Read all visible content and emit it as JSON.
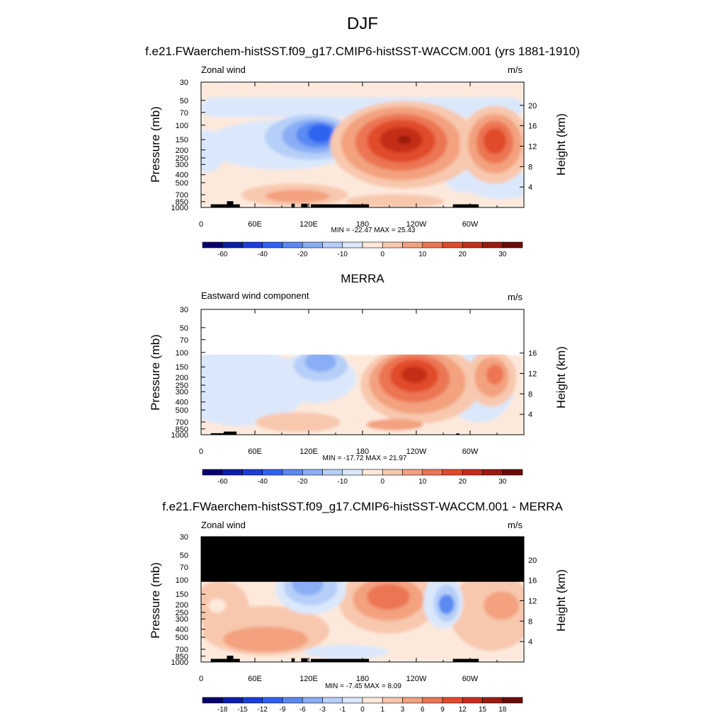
{
  "figure": {
    "title": "DJF"
  },
  "pressure_ticks": [
    "30",
    "50",
    "70",
    "100",
    "150",
    "200",
    "250",
    "300",
    "400",
    "500",
    "700",
    "850",
    "1000"
  ],
  "longitude_ticks": [
    "0",
    "60E",
    "120E",
    "180",
    "120W",
    "60W"
  ],
  "panels": [
    {
      "title": "f.e21.FWaerchem-histSST.f09_g17.CMIP6-histSST-WACCM.001 (yrs 1881-1910)",
      "left_label": "Zonal wind",
      "right_label": "m/s",
      "ylabel": "Pressure (mb)",
      "ylabel_right": "Height (km)",
      "height_ticks": [
        "4",
        "8",
        "12",
        "16",
        "20"
      ],
      "min_max": "MIN = -22.47  MAX =  25.43",
      "colorbar_labels": [
        "-60",
        "-40",
        "-20",
        "-10",
        "0",
        "10",
        "20",
        "30"
      ]
    },
    {
      "title": "MERRA",
      "left_label": "Eastward wind component",
      "right_label": "m/s",
      "ylabel": "Pressure (mb)",
      "ylabel_right": "Height (km)",
      "height_ticks": [
        "4",
        "8",
        "12",
        "16"
      ],
      "min_max": "MIN = -17.72  MAX =  21.97",
      "colorbar_labels": [
        "-60",
        "-40",
        "-20",
        "-10",
        "0",
        "10",
        "20",
        "30"
      ]
    },
    {
      "title": "f.e21.FWaerchem-histSST.f09_g17.CMIP6-histSST-WACCM.001 - MERRA",
      "left_label": "Zonal wind",
      "right_label": "m/s",
      "ylabel": "Pressure (mb)",
      "ylabel_right": "Height (km)",
      "height_ticks": [
        "4",
        "8",
        "12",
        "16",
        "20"
      ],
      "min_max": "MIN =  -7.45  MAX =   8.09",
      "colorbar_labels": [
        "-18",
        "-15",
        "-12",
        "-9",
        "-6",
        "-3",
        "-1",
        "0",
        "1",
        "3",
        "6",
        "9",
        "12",
        "15",
        "18"
      ]
    }
  ],
  "colors": {
    "palette": [
      "#08006e",
      "#0b1fa8",
      "#1a3fd6",
      "#2f63f0",
      "#5a8af2",
      "#8aaef5",
      "#b6cff8",
      "#dbe8fb",
      "#fde9dc",
      "#f8c8ae",
      "#f3a17e",
      "#ec7552",
      "#e04b2c",
      "#c52d19",
      "#9c1a10",
      "#6b0b07"
    ],
    "mask": "#000000"
  },
  "chart_data": [
    {
      "type": "heatmap",
      "title": "f.e21.FWaerchem-histSST.f09_g17.CMIP6-histSST-WACCM.001 (yrs 1881-1910)",
      "variable": "Zonal wind",
      "units": "m/s",
      "ylabel": "Pressure (mb)",
      "y2label": "Height (km)",
      "y_scale": "log",
      "ylim": [
        1000,
        30
      ],
      "xlim": [
        0,
        360
      ],
      "x_ticks": [
        "0",
        "60E",
        "120E",
        "180",
        "120W",
        "60W"
      ],
      "min": -22.47,
      "max": 25.43,
      "contour_levels": [
        -60,
        -50,
        -40,
        -30,
        -20,
        -15,
        -10,
        -5,
        0,
        5,
        10,
        15,
        20,
        25,
        30
      ],
      "features": [
        {
          "pressure": 130,
          "lon": 130,
          "value": -20
        },
        {
          "pressure": 160,
          "lon": 225,
          "value": 25
        },
        {
          "pressure": 160,
          "lon": 325,
          "value": 20
        },
        {
          "pressure": 60,
          "lon": 180,
          "value": -5
        },
        {
          "pressure": 750,
          "lon": 110,
          "value": 10
        }
      ]
    },
    {
      "type": "heatmap",
      "title": "MERRA",
      "variable": "Eastward wind component",
      "units": "m/s",
      "ylabel": "Pressure (mb)",
      "y2label": "Height (km)",
      "y_scale": "log",
      "ylim": [
        1000,
        30
      ],
      "xlim": [
        0,
        360
      ],
      "x_ticks": [
        "0",
        "60E",
        "120E",
        "180",
        "120W",
        "60W"
      ],
      "min": -17.72,
      "max": 21.97,
      "contour_levels": [
        -60,
        -50,
        -40,
        -30,
        -20,
        -15,
        -10,
        -5,
        0,
        5,
        10,
        15,
        20,
        25,
        30
      ],
      "features": [
        {
          "pressure": 160,
          "lon": 137,
          "value": -15
        },
        {
          "pressure": 170,
          "lon": 245,
          "value": 20
        },
        {
          "pressure": 170,
          "lon": 330,
          "value": 15
        },
        {
          "pressure": 700,
          "lon": 90,
          "value": 5
        }
      ]
    },
    {
      "type": "heatmap",
      "title": "f.e21.FWaerchem-histSST.f09_g17.CMIP6-histSST-WACCM.001 - MERRA",
      "variable": "Zonal wind",
      "units": "m/s",
      "ylabel": "Pressure (mb)",
      "y2label": "Height (km)",
      "y_scale": "log",
      "ylim": [
        1000,
        30
      ],
      "xlim": [
        0,
        360
      ],
      "x_ticks": [
        "0",
        "60E",
        "120E",
        "180",
        "120W",
        "60W"
      ],
      "min": -7.45,
      "max": 8.09,
      "contour_levels": [
        -18,
        -15,
        -12,
        -9,
        -6,
        -3,
        -1,
        0,
        1,
        3,
        6,
        9,
        12,
        15,
        18
      ],
      "features": [
        {
          "pressure": 170,
          "lon": 200,
          "value": 6
        },
        {
          "pressure": 220,
          "lon": 275,
          "value": -6
        },
        {
          "pressure": 160,
          "lon": 120,
          "value": -6
        },
        {
          "pressure": 600,
          "lon": 120,
          "value": 3
        },
        {
          "pressure": 200,
          "lon": 330,
          "value": 3
        }
      ]
    }
  ]
}
